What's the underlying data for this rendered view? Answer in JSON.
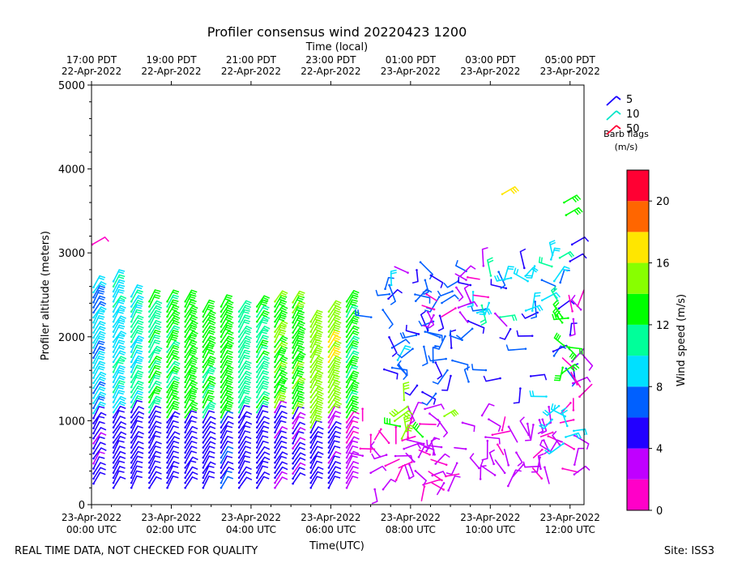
{
  "chart_data": {
    "type": "wind-barb",
    "title": "Profiler consensus wind 20220423 1200",
    "top_axis_label": "Time (local)",
    "top_ticks": [
      {
        "line1": "17:00 PDT",
        "line2": "22-Apr-2022",
        "hour": 0
      },
      {
        "line1": "19:00 PDT",
        "line2": "22-Apr-2022",
        "hour": 2
      },
      {
        "line1": "21:00 PDT",
        "line2": "22-Apr-2022",
        "hour": 4
      },
      {
        "line1": "23:00 PDT",
        "line2": "22-Apr-2022",
        "hour": 6
      },
      {
        "line1": "01:00 PDT",
        "line2": "23-Apr-2022",
        "hour": 8
      },
      {
        "line1": "03:00 PDT",
        "line2": "23-Apr-2022",
        "hour": 10
      },
      {
        "line1": "05:00 PDT",
        "line2": "23-Apr-2022",
        "hour": 12
      }
    ],
    "bottom_ticks": [
      {
        "line1": "23-Apr-2022",
        "line2": "00:00 UTC",
        "hour": 0
      },
      {
        "line1": "23-Apr-2022",
        "line2": "02:00 UTC",
        "hour": 2
      },
      {
        "line1": "23-Apr-2022",
        "line2": "04:00 UTC",
        "hour": 4
      },
      {
        "line1": "23-Apr-2022",
        "line2": "06:00 UTC",
        "hour": 6
      },
      {
        "line1": "23-Apr-2022",
        "line2": "08:00 UTC",
        "hour": 8
      },
      {
        "line1": "23-Apr-2022",
        "line2": "10:00 UTC",
        "hour": 10
      },
      {
        "line1": "23-Apr-2022",
        "line2": "12:00 UTC",
        "hour": 12
      }
    ],
    "xlabel": "Time(UTC)",
    "ylabel": "Profiler altitude (meters)",
    "xlim_hours": [
      0,
      12.35
    ],
    "ylim": [
      0,
      5000
    ],
    "yticks": [
      0,
      1000,
      2000,
      3000,
      4000,
      5000
    ],
    "barb_legend": {
      "entries": [
        {
          "label": "5",
          "color": "#1a00ff"
        },
        {
          "label": "10",
          "color": "#00e5c8"
        },
        {
          "label": "50",
          "color": "#ff0033"
        }
      ],
      "title_line1": "Barb flags",
      "title_line2": "(m/s)"
    },
    "colorbar": {
      "label": "Wind speed (m/s)",
      "min": 0,
      "max": 22,
      "ticks": [
        0,
        4,
        8,
        12,
        16,
        20
      ],
      "colors": [
        "#ff00c8",
        "#c000ff",
        "#2200ff",
        "#0060ff",
        "#00e0ff",
        "#00ff9a",
        "#00ff00",
        "#88ff00",
        "#ffe600",
        "#ff6600",
        "#ff0033"
      ]
    },
    "columns": [
      {
        "t": 0.05,
        "top": 2600,
        "low_top": 1050,
        "bottom": 250,
        "hi_speed": 8.5,
        "lo_speed": 4.5
      },
      {
        "t": 0.55,
        "top": 2700,
        "low_top": 1050,
        "bottom": 200,
        "hi_speed": 9.5,
        "lo_speed": 5
      },
      {
        "t": 1.0,
        "top": 2500,
        "low_top": 1100,
        "bottom": 200,
        "hi_speed": 10.5,
        "lo_speed": 5
      },
      {
        "t": 1.45,
        "top": 2450,
        "low_top": 1050,
        "bottom": 200,
        "hi_speed": 11.5,
        "lo_speed": 5
      },
      {
        "t": 1.9,
        "top": 2450,
        "low_top": 1000,
        "bottom": 200,
        "hi_speed": 12.5,
        "lo_speed": 5
      },
      {
        "t": 2.35,
        "top": 2450,
        "low_top": 1000,
        "bottom": 200,
        "hi_speed": 13,
        "lo_speed": 5
      },
      {
        "t": 2.8,
        "top": 2350,
        "low_top": 1000,
        "bottom": 200,
        "hi_speed": 12,
        "lo_speed": 5
      },
      {
        "t": 3.25,
        "top": 2400,
        "low_top": 1000,
        "bottom": 200,
        "hi_speed": 13,
        "lo_speed": 5.5
      },
      {
        "t": 3.7,
        "top": 2350,
        "low_top": 1050,
        "bottom": 200,
        "hi_speed": 11,
        "lo_speed": 5
      },
      {
        "t": 4.15,
        "top": 2400,
        "low_top": 1050,
        "bottom": 200,
        "hi_speed": 12,
        "lo_speed": 5
      },
      {
        "t": 4.6,
        "top": 2450,
        "low_top": 1100,
        "bottom": 200,
        "hi_speed": 13.5,
        "lo_speed": 4.5
      },
      {
        "t": 5.05,
        "top": 2450,
        "low_top": 1050,
        "bottom": 250,
        "hi_speed": 14,
        "lo_speed": 4
      },
      {
        "t": 5.5,
        "top": 2200,
        "low_top": 900,
        "bottom": 200,
        "hi_speed": 15,
        "lo_speed": 5
      },
      {
        "t": 5.95,
        "top": 2300,
        "low_top": 1050,
        "bottom": 200,
        "hi_speed": 15.5,
        "lo_speed": 4.5
      },
      {
        "t": 6.4,
        "top": 2450,
        "low_top": 1000,
        "bottom": 200,
        "hi_speed": 12.5,
        "lo_speed": 2.5
      }
    ],
    "scatter_regions": [
      {
        "t0": 6.7,
        "t1": 12.2,
        "alt0": 150,
        "alt1": 1200,
        "speed0": 1,
        "speed1": 4,
        "n": 90
      },
      {
        "t0": 7.0,
        "t1": 9.0,
        "alt0": 1500,
        "alt1": 2800,
        "speed0": 5,
        "speed1": 9,
        "n": 26
      },
      {
        "t0": 8.0,
        "t1": 12.2,
        "alt0": 1300,
        "alt1": 2900,
        "speed0": 4.5,
        "speed1": 7,
        "n": 45
      },
      {
        "t0": 9.5,
        "t1": 11.8,
        "alt0": 2200,
        "alt1": 3000,
        "speed0": 8,
        "speed1": 10.5,
        "n": 20
      },
      {
        "t0": 7.6,
        "t1": 10.2,
        "alt0": 2200,
        "alt1": 2900,
        "speed0": 1,
        "speed1": 3,
        "n": 16
      },
      {
        "t0": 12.0,
        "t1": 12.3,
        "alt0": 1000,
        "alt1": 2400,
        "speed0": 1,
        "speed1": 3,
        "n": 14
      },
      {
        "t0": 7.6,
        "t1": 9.2,
        "alt0": 750,
        "alt1": 1250,
        "speed0": 13,
        "speed1": 14.5,
        "n": 8
      },
      {
        "t0": 11.8,
        "t1": 12.0,
        "alt0": 1500,
        "alt1": 2300,
        "speed0": 12,
        "speed1": 13.5,
        "n": 8
      },
      {
        "t0": 11.4,
        "t1": 12.2,
        "alt0": 650,
        "alt1": 1450,
        "speed0": 8,
        "speed1": 9.5,
        "n": 8
      }
    ],
    "isolated_barbs": [
      {
        "t": 0.02,
        "alt": 3100,
        "speed": 1.5
      },
      {
        "t": 10.3,
        "alt": 3700,
        "speed": 17
      },
      {
        "t": 11.85,
        "alt": 3600,
        "speed": 13.5
      },
      {
        "t": 11.9,
        "alt": 3450,
        "speed": 13
      },
      {
        "t": 12.05,
        "alt": 3100,
        "speed": 5
      },
      {
        "t": 12.0,
        "alt": 2900,
        "speed": 4
      }
    ]
  },
  "footer": {
    "left": "REAL TIME DATA, NOT CHECKED FOR QUALITY",
    "right": "Site: ISS3"
  }
}
